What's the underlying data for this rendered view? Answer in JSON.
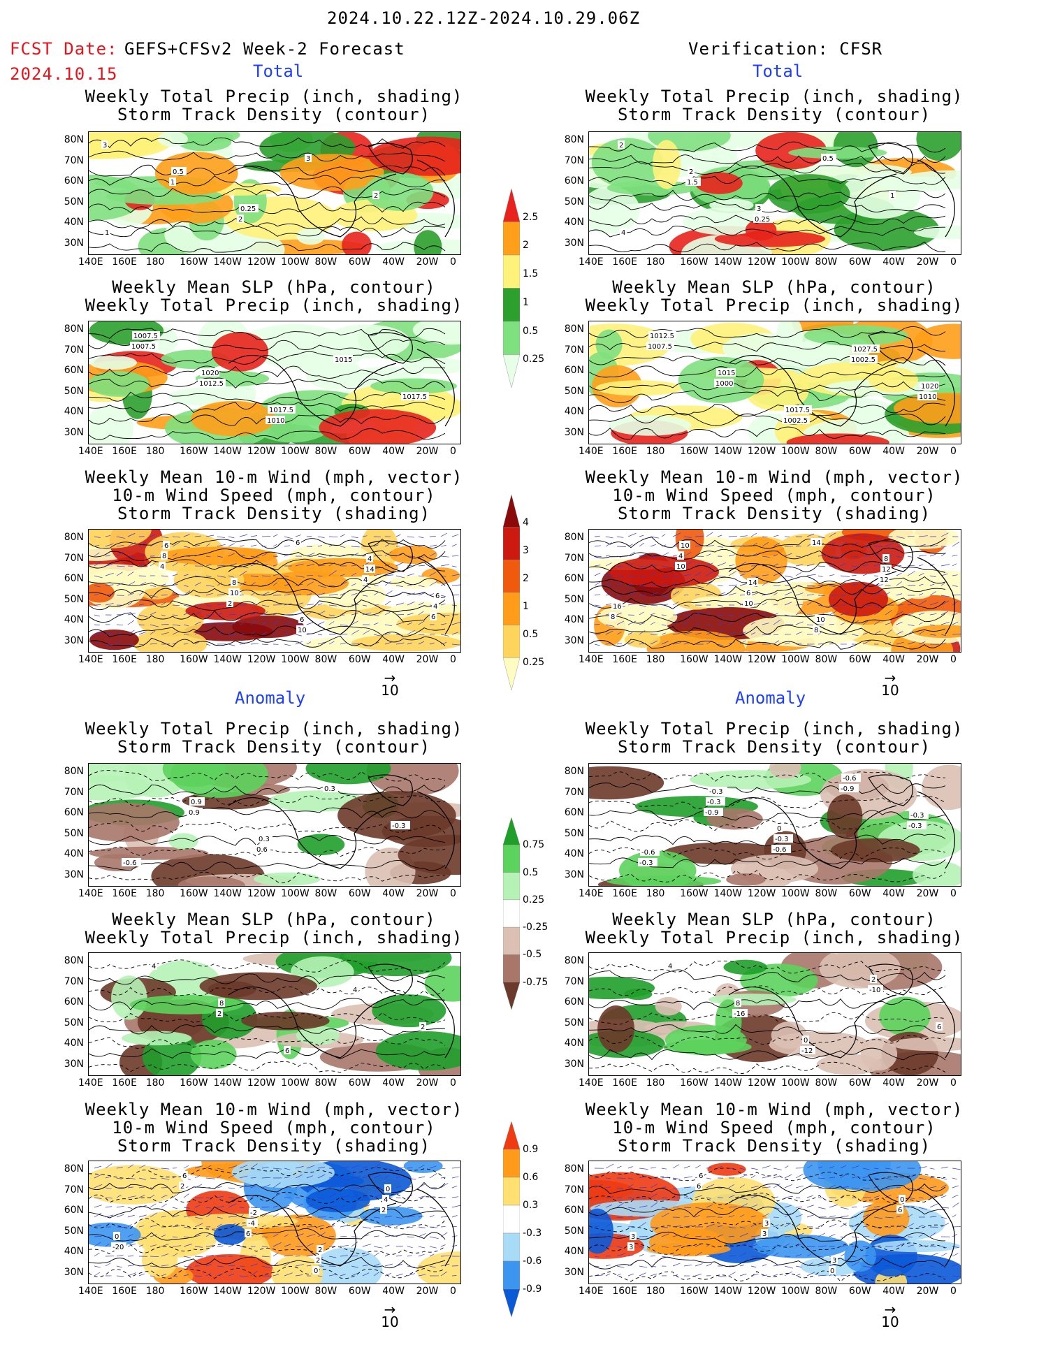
{
  "header": {
    "date_range": "2024.10.22.12Z-2024.10.29.06Z",
    "fcst_date_label": "FCST Date:",
    "fcst_date": "2024.10.15",
    "left_model": "GEFS+CFSv2 Week-2 Forecast",
    "right_model": "Verification: CFSR"
  },
  "sections": {
    "total": "Total",
    "anomaly": "Anomaly"
  },
  "titles": {
    "precip_storm": [
      "Weekly Total Precip (inch, shading)",
      "Storm Track Density (contour)"
    ],
    "slp_precip": [
      "Weekly Mean SLP (hPa, contour)",
      "Weekly Total Precip (inch, shading)"
    ],
    "wind_storm": [
      "Weekly Mean 10-m Wind (mph, vector)",
      "10-m Wind Speed (mph, contour)",
      "Storm Track Density (shading)"
    ]
  },
  "axes": {
    "lat_labels": [
      "80N",
      "70N",
      "60N",
      "50N",
      "40N",
      "30N"
    ],
    "lon_labels": [
      "140E",
      "160E",
      "180",
      "160W",
      "140W",
      "120W",
      "100W",
      "80W",
      "60W",
      "40W",
      "20W",
      "0"
    ]
  },
  "vector_reference": "10",
  "colorbars": {
    "total_precip": [
      "2.5",
      "2",
      "1.5",
      "1",
      "0.5",
      "0.25"
    ],
    "total_storm": [
      "4",
      "3",
      "2",
      "1",
      "0.5",
      "0.25"
    ],
    "anom_precip": [
      "0.75",
      "0.5",
      "0.25",
      "-0.25",
      "-0.5",
      "-0.75"
    ],
    "anom_storm": [
      "0.9",
      "0.6",
      "0.3",
      "-0.3",
      "-0.6",
      "-0.9"
    ]
  },
  "colors": {
    "precip_total": [
      "#e6ffe6",
      "#7fe07f",
      "#2ca02c",
      "#fff27a",
      "#ff9f1a",
      "#e8231d"
    ],
    "storm_total": [
      "#fffcc2",
      "#ffd45c",
      "#ff9d1a",
      "#f05a0c",
      "#cc1a10",
      "#8a0a0a"
    ],
    "precip_anom": [
      "#6b3a2a",
      "#a8776a",
      "#dcc0b4",
      "#ffffff",
      "#b6f2b6",
      "#5cd35c",
      "#1f9e2a"
    ],
    "storm_anom": [
      "#0a5ad8",
      "#3c96f0",
      "#a8dcf6",
      "#ffffff",
      "#ffe070",
      "#ff9a1a",
      "#ee3b12"
    ]
  },
  "contour_labels": {
    "p1_left": [
      "3",
      "1",
      "2",
      "3",
      "2",
      "1",
      "0.5",
      "0.25"
    ],
    "p1_right": [
      "2",
      "1.5",
      "0.25",
      "0.5",
      "1",
      "4",
      "2",
      "3"
    ],
    "p2_left": [
      "1007.5",
      "1012.5",
      "1010",
      "1015",
      "1017.5",
      "1007.5",
      "1020",
      "1017.5"
    ],
    "p2_right": [
      "1007.5",
      "1000",
      "1002.5",
      "1002.5",
      "1010",
      "1012.5",
      "1015",
      "1017.5",
      "1027.5",
      "1020"
    ],
    "p3_left": [
      "4",
      "2",
      "6",
      "4",
      "6",
      "8",
      "10",
      "10",
      "14",
      "4",
      "6",
      "8",
      "6",
      "4",
      "6"
    ],
    "p3_right": [
      "10",
      "10",
      "14",
      "12",
      "8",
      "4",
      "6",
      "8",
      "12",
      "16",
      "10",
      "14",
      "10",
      "8"
    ],
    "p4_left": [
      "0.9",
      "0.6",
      "0.3",
      "-0.3",
      "-0.6",
      "0.9",
      "0.3"
    ],
    "p4_right": [
      "-0.9",
      "-0.6",
      "-0.9",
      "-0.3",
      "-0.3",
      "-0.3",
      "-0.3",
      "-0.6",
      "-0.3",
      "-0.6",
      "-0.3",
      "0"
    ],
    "p5_left": [
      "2",
      "6",
      "4",
      "2",
      "4",
      "8"
    ],
    "p5_right": [
      "-16",
      "-12",
      "-10",
      "6",
      "4",
      "8",
      "0",
      "2"
    ],
    "p6_left": [
      "6",
      "0",
      "2",
      "-20",
      "2",
      "-4",
      "2",
      "4",
      "0",
      "6",
      "-2",
      "2",
      "0"
    ],
    "p6_right": [
      "3",
      "0",
      "6",
      "3",
      "6",
      "3",
      "3",
      "0",
      "3",
      "6"
    ]
  }
}
